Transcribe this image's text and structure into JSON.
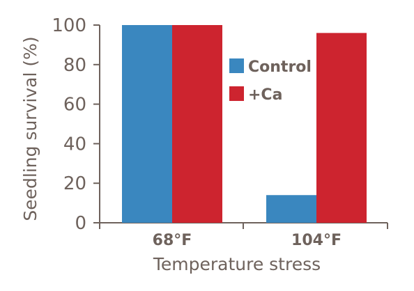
{
  "chart_data": {
    "type": "bar",
    "categories": [
      "68°F",
      "104°F"
    ],
    "series": [
      {
        "name": "Control",
        "values": [
          100,
          14
        ],
        "color": "#3a87bf"
      },
      {
        "name": "+Ca",
        "values": [
          100,
          96
        ],
        "color": "#cd242f"
      }
    ],
    "xlabel": "Temperature stress",
    "ylabel": "Seedling survival (%)",
    "ylim": [
      0,
      100
    ],
    "yticks": [
      0,
      20,
      40,
      60,
      80,
      100
    ],
    "legend_position": "right",
    "grid": false,
    "text_color": "#6e625c"
  }
}
